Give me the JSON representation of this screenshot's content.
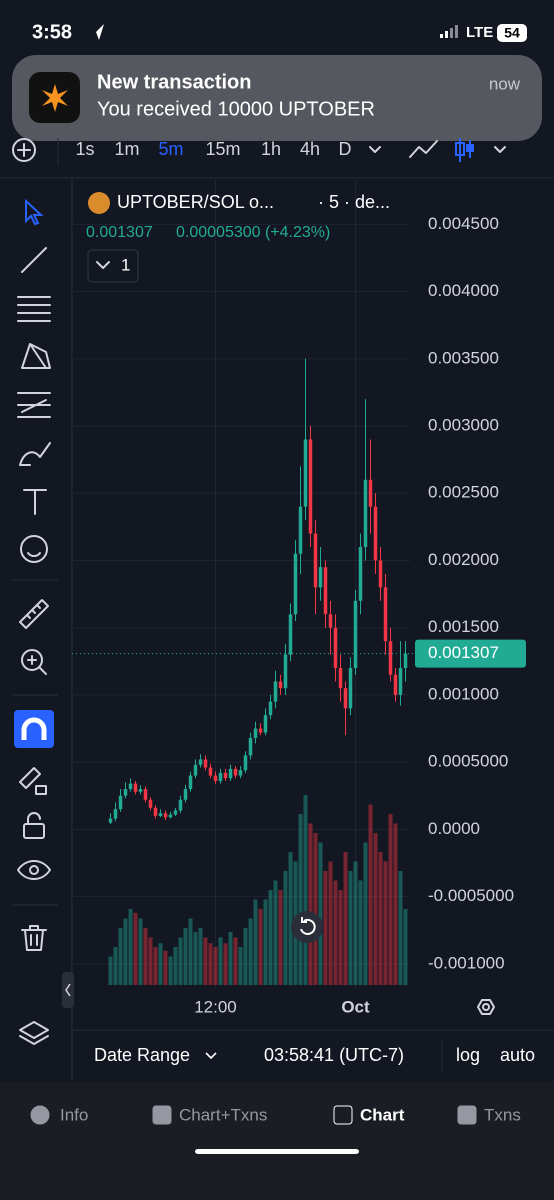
{
  "status_bar": {
    "time": "3:58",
    "network": "LTE",
    "battery": "54"
  },
  "notification": {
    "title": "New transaction",
    "body": "You received 10000 UPTOBER",
    "time": "now"
  },
  "toolbar": {
    "timeframes": [
      "1s",
      "1m",
      "5m",
      "15m",
      "1h",
      "4h",
      "D"
    ],
    "active": 2
  },
  "chart_data": {
    "type": "candlestick",
    "pair": "UPTOBER/SOL o...",
    "interval": "· 5 · de...",
    "price": 0.001307,
    "change": "0.00005300 (+4.23%)",
    "badge": "1",
    "categories": [
      null,
      null,
      null,
      null,
      null,
      null,
      null,
      null,
      null,
      null,
      null,
      null,
      null,
      null,
      null,
      null,
      null,
      null,
      null,
      null,
      null,
      "12:00",
      null,
      null,
      null,
      null,
      null,
      null,
      null,
      null,
      null,
      null,
      null,
      null,
      null,
      null,
      null,
      null,
      null,
      null,
      null,
      null,
      null,
      null,
      null,
      null,
      null,
      null,
      null,
      "Oct",
      null,
      null,
      null,
      null,
      null,
      null,
      null,
      null,
      null,
      null
    ],
    "open": [
      5e-05,
      8e-05,
      0.00015,
      0.00025,
      0.0003,
      0.00034,
      0.00028,
      0.0003,
      0.00022,
      0.00016,
      0.0001,
      0.00012,
      9e-05,
      0.00011,
      0.00014,
      0.00022,
      0.0003,
      0.0004,
      0.00048,
      0.00052,
      0.00046,
      0.0004,
      0.00036,
      0.00042,
      0.00038,
      0.00045,
      0.0004,
      0.00044,
      0.00055,
      0.00068,
      0.00075,
      0.00072,
      0.00085,
      0.00095,
      0.0011,
      0.00105,
      0.0013,
      0.0016,
      0.00205,
      0.0024,
      0.0029,
      0.0022,
      0.0018,
      0.00195,
      0.0016,
      0.0015,
      0.0012,
      0.00105,
      0.0009,
      0.0012,
      0.0017,
      0.0021,
      0.0026,
      0.0024,
      0.002,
      0.0018,
      0.0014,
      0.00115,
      0.001,
      0.0012
    ],
    "high": [
      0.00012,
      0.0002,
      0.0003,
      0.00035,
      0.00038,
      0.00036,
      0.00033,
      0.00032,
      0.00024,
      0.00018,
      0.00015,
      0.00014,
      0.00013,
      0.00016,
      0.00025,
      0.00033,
      0.00043,
      0.00052,
      0.00056,
      0.00055,
      0.00049,
      0.00043,
      0.00045,
      0.00045,
      0.00048,
      0.00047,
      0.00047,
      0.00058,
      0.00072,
      0.0008,
      0.00079,
      0.0009,
      0.001,
      0.00118,
      0.00115,
      0.00138,
      0.00168,
      0.00215,
      0.0027,
      0.0035,
      0.003,
      0.0023,
      0.0021,
      0.002,
      0.0017,
      0.0016,
      0.0013,
      0.0011,
      0.00128,
      0.00178,
      0.0022,
      0.0032,
      0.0029,
      0.0025,
      0.0021,
      0.0019,
      0.0015,
      0.0012,
      0.0014,
      0.0014
    ],
    "low": [
      4e-05,
      6e-05,
      0.00013,
      0.00023,
      0.00028,
      0.00026,
      0.00026,
      0.0002,
      0.00014,
      8e-05,
      9e-05,
      7e-05,
      8e-05,
      0.0001,
      0.00012,
      0.0002,
      0.00028,
      0.00038,
      0.00046,
      0.00044,
      0.00038,
      0.00034,
      0.00034,
      0.00036,
      0.00036,
      0.00038,
      0.00038,
      0.00042,
      0.00052,
      0.00064,
      0.0007,
      0.0007,
      0.00082,
      0.0009,
      0.001,
      0.001,
      0.00125,
      0.00155,
      0.0019,
      0.0023,
      0.0021,
      0.0016,
      0.0017,
      0.0015,
      0.0013,
      0.0011,
      0.00095,
      0.0007,
      0.00085,
      0.00115,
      0.0016,
      0.002,
      0.0022,
      0.0019,
      0.0017,
      0.0013,
      0.0011,
      0.00095,
      0.00092,
      0.0011
    ],
    "close": [
      8e-05,
      0.00015,
      0.00025,
      0.0003,
      0.00034,
      0.00028,
      0.0003,
      0.00022,
      0.00016,
      0.0001,
      0.00012,
      9e-05,
      0.00011,
      0.00014,
      0.00022,
      0.0003,
      0.0004,
      0.00048,
      0.00052,
      0.00046,
      0.0004,
      0.00036,
      0.00042,
      0.00038,
      0.00045,
      0.0004,
      0.00044,
      0.00055,
      0.00068,
      0.00075,
      0.00072,
      0.00085,
      0.00095,
      0.0011,
      0.00105,
      0.0013,
      0.0016,
      0.00205,
      0.0024,
      0.0029,
      0.0022,
      0.0018,
      0.00195,
      0.0016,
      0.0015,
      0.0012,
      0.00105,
      0.0009,
      0.0012,
      0.0017,
      0.0021,
      0.0026,
      0.0024,
      0.002,
      0.0018,
      0.0014,
      0.00115,
      0.001,
      0.0012,
      0.001307
    ],
    "volume": [
      15,
      20,
      30,
      35,
      40,
      38,
      35,
      30,
      25,
      20,
      22,
      18,
      15,
      20,
      25,
      30,
      35,
      28,
      30,
      25,
      22,
      20,
      25,
      22,
      28,
      25,
      20,
      30,
      35,
      45,
      40,
      45,
      50,
      55,
      50,
      60,
      70,
      65,
      90,
      100,
      85,
      80,
      75,
      60,
      65,
      55,
      50,
      70,
      60,
      65,
      55,
      75,
      95,
      80,
      70,
      65,
      90,
      85,
      60,
      40
    ],
    "up_color": "#22ab94",
    "down_color": "#f23645",
    "ylim": [
      -0.00118,
      0.00483
    ],
    "yticks": [
      {
        "value": 0.0045,
        "label": "0.004500"
      },
      {
        "value": 0.004,
        "label": "0.004000"
      },
      {
        "value": 0.0035,
        "label": "0.003500"
      },
      {
        "value": 0.003,
        "label": "0.003000"
      },
      {
        "value": 0.0025,
        "label": "0.002500"
      },
      {
        "value": 0.002,
        "label": "0.002000"
      },
      {
        "value": 0.0015,
        "label": "0.001500"
      },
      {
        "value": 0.001,
        "label": "0.001000"
      },
      {
        "value": 0.0005,
        "label": "0.0005000"
      },
      {
        "value": 0,
        "label": "0.0000"
      },
      {
        "value": -0.0005,
        "label": "-0.0005000"
      },
      {
        "value": -0.001,
        "label": "-0.001000"
      }
    ],
    "grid": true
  },
  "footer": {
    "date_range": "Date Range",
    "clock": "03:58:41 (UTC-7)",
    "log": "log",
    "auto": "auto"
  },
  "tabs": {
    "items": [
      "Info",
      "Chart+Txns",
      "Chart",
      "Txns"
    ],
    "active": 2
  }
}
